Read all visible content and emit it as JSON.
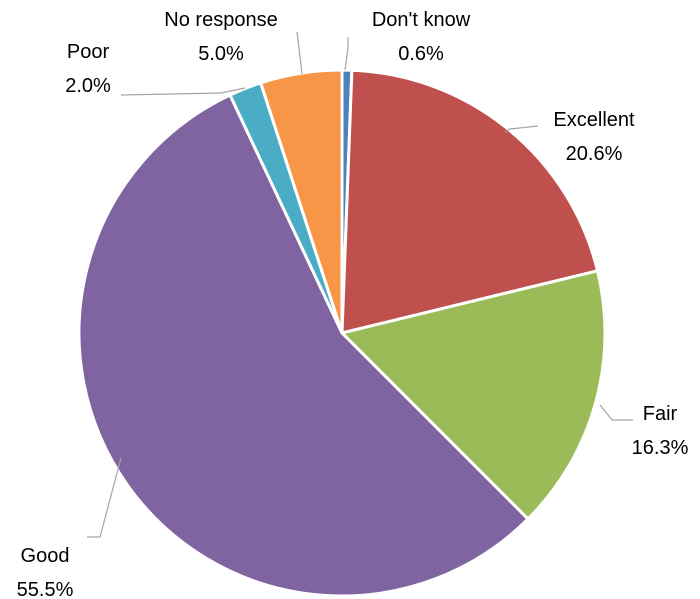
{
  "chart_data": {
    "type": "pie",
    "title": "",
    "start_angle_deg": 0,
    "direction": "clockwise",
    "slices": [
      {
        "label": "Don't know",
        "value": 0.6,
        "value_label": "0.6%",
        "color": "#4f81bd"
      },
      {
        "label": "Excellent",
        "value": 20.6,
        "value_label": "20.6%",
        "color": "#c0504d"
      },
      {
        "label": "Fair",
        "value": 16.3,
        "value_label": "16.3%",
        "color": "#9bbb59"
      },
      {
        "label": "Good",
        "value": 55.5,
        "value_label": "55.5%",
        "color": "#8064a2"
      },
      {
        "label": "Poor",
        "value": 2.0,
        "value_label": "2.0%",
        "color": "#4bacc6"
      },
      {
        "label": "No response",
        "value": 5.0,
        "value_label": "5.0%",
        "color": "#f79646"
      }
    ],
    "legend": "none",
    "data_labels": "outside with leader lines"
  }
}
